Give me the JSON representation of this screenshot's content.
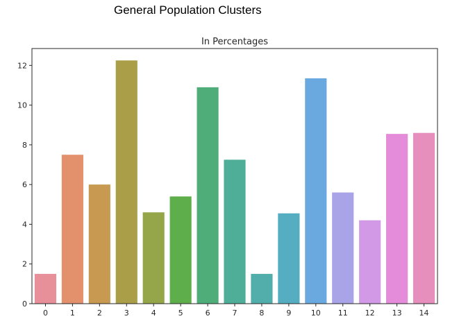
{
  "page": {
    "heading": "General Population Clusters"
  },
  "chart_data": {
    "type": "bar",
    "title": "In Percentages",
    "xlabel": "",
    "ylabel": "",
    "categories": [
      "0",
      "1",
      "2",
      "3",
      "4",
      "5",
      "6",
      "7",
      "8",
      "9",
      "10",
      "11",
      "12",
      "13",
      "14"
    ],
    "values": [
      1.5,
      7.5,
      6.0,
      12.25,
      4.6,
      5.4,
      10.9,
      7.25,
      1.5,
      4.55,
      11.35,
      5.6,
      4.2,
      8.55,
      8.6
    ],
    "ylim": [
      0,
      12.85
    ],
    "yticks": [
      "0",
      "2",
      "4",
      "6",
      "8",
      "10",
      "12"
    ],
    "grid": false,
    "colors": [
      "#e8909a",
      "#e3906d",
      "#c89a51",
      "#ab9e48",
      "#95a64a",
      "#5fae4c",
      "#4fad7a",
      "#4fae97",
      "#52aeab",
      "#55adc1",
      "#6aa9e0",
      "#a9a3e8",
      "#d299e6",
      "#e48bd9",
      "#e68fbd"
    ]
  }
}
